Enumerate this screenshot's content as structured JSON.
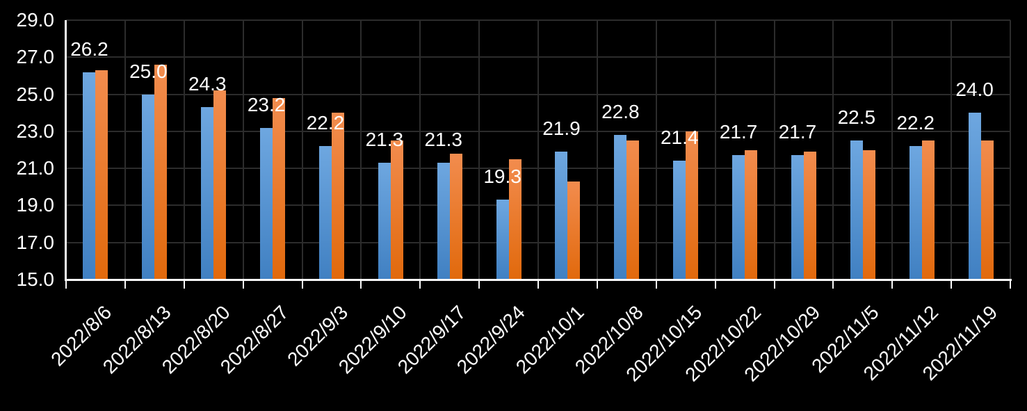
{
  "chart_data": {
    "type": "bar",
    "title": "",
    "legend": "none",
    "grid": true,
    "categories": [
      "2022/8/6",
      "2022/8/13",
      "2022/8/20",
      "2022/8/27",
      "2022/9/3",
      "2022/9/10",
      "2022/9/17",
      "2022/9/24",
      "2022/10/1",
      "2022/10/8",
      "2022/10/15",
      "2022/10/22",
      "2022/10/29",
      "2022/11/5",
      "2022/11/12",
      "2022/11/19"
    ],
    "series": [
      {
        "name": "blue-series",
        "values": [
          26.2,
          25.0,
          24.3,
          23.2,
          22.2,
          21.3,
          21.3,
          19.3,
          21.9,
          22.8,
          21.4,
          21.7,
          21.7,
          22.5,
          22.2,
          24.0
        ],
        "data_labels": [
          "26.2",
          "25.0",
          "24.3",
          "23.2",
          "22.2",
          "21.3",
          "21.3",
          "19.3",
          "21.9",
          "22.8",
          "21.4",
          "21.7",
          "21.7",
          "22.5",
          "22.2",
          "24.0"
        ]
      },
      {
        "name": "orange-series",
        "values": [
          26.3,
          26.6,
          25.2,
          24.8,
          24.0,
          22.5,
          21.8,
          21.5,
          20.3,
          22.5,
          23.0,
          22.0,
          21.9,
          22.0,
          22.5,
          22.5
        ],
        "data_labels": []
      }
    ],
    "ylim": [
      15,
      29
    ],
    "yticks": [
      {
        "value": 29,
        "label": "29.0"
      },
      {
        "value": 27,
        "label": "27.0"
      },
      {
        "value": 25,
        "label": "25.0"
      },
      {
        "value": 23,
        "label": "23.0"
      },
      {
        "value": 21,
        "label": "21.0"
      },
      {
        "value": 19,
        "label": "19.0"
      },
      {
        "value": 17,
        "label": "17.0"
      },
      {
        "value": 15,
        "label": "15.0"
      }
    ],
    "xlabel": "",
    "ylabel": "",
    "colors": {
      "background": "#000000",
      "gridline": "#2c2c2c",
      "axis": "#fafafa",
      "text": "#ffffff",
      "blue_top": "#6EA7E0",
      "blue_bottom": "#4080C2",
      "orange_top": "#F28C4E",
      "orange_bottom": "#E1690C"
    }
  }
}
